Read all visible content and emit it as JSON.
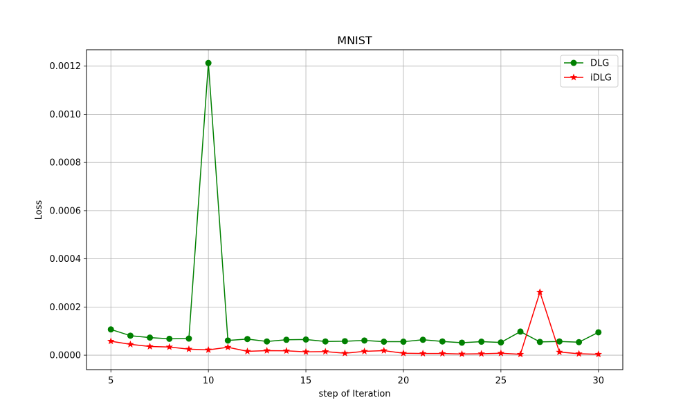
{
  "chart_data": {
    "type": "line",
    "title": "MNIST",
    "xlabel": "step of Iteration",
    "ylabel": "Loss",
    "x": [
      5,
      6,
      7,
      8,
      9,
      10,
      11,
      12,
      13,
      14,
      15,
      16,
      17,
      18,
      19,
      20,
      21,
      22,
      23,
      24,
      25,
      26,
      27,
      28,
      29,
      30
    ],
    "xlim": [
      3.75,
      31.25
    ],
    "ylim": [
      -6e-05,
      0.001268
    ],
    "xticks": [
      5,
      10,
      15,
      20,
      25,
      30
    ],
    "xtick_labels": [
      "5",
      "10",
      "15",
      "20",
      "25",
      "30"
    ],
    "yticks": [
      0,
      0.0002,
      0.0004,
      0.0006,
      0.0008,
      0.001,
      0.0012
    ],
    "ytick_labels": [
      "0.0000",
      "0.0002",
      "0.0004",
      "0.0006",
      "0.0008",
      "0.0010",
      "0.0012"
    ],
    "grid": true,
    "legend_position": "top-right",
    "series": [
      {
        "name": "DLG",
        "color": "#008000",
        "marker": "circle",
        "values": [
          0.000107,
          8.1e-05,
          7.3e-05,
          6.8e-05,
          6.9e-05,
          0.001213,
          6.1e-05,
          6.7e-05,
          5.7e-05,
          6.4e-05,
          6.5e-05,
          5.7e-05,
          5.8e-05,
          6.1e-05,
          5.6e-05,
          5.6e-05,
          6.4e-05,
          5.7e-05,
          5.2e-05,
          5.6e-05,
          5.3e-05,
          9.8e-05,
          5.5e-05,
          5.7e-05,
          5.4e-05,
          9.5e-05
        ]
      },
      {
        "name": "iDLG",
        "color": "#ff0000",
        "marker": "star",
        "values": [
          5.8e-05,
          4.5e-05,
          3.6e-05,
          3.4e-05,
          2.5e-05,
          2.2e-05,
          3.3e-05,
          1.6e-05,
          1.9e-05,
          1.8e-05,
          1.4e-05,
          1.5e-05,
          8e-06,
          1.6e-05,
          1.9e-05,
          8e-06,
          7e-06,
          7e-06,
          5e-06,
          6e-06,
          8e-06,
          4e-06,
          0.000262,
          1.3e-05,
          6e-06,
          4e-06
        ]
      }
    ]
  }
}
